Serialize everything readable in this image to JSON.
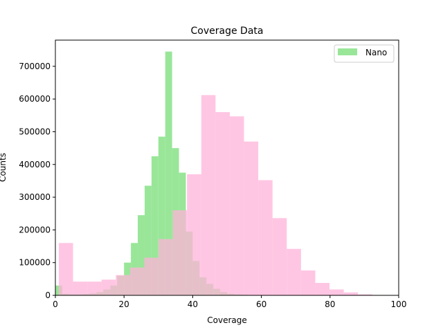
{
  "chart_data": {
    "type": "bar",
    "title": "Coverage Data",
    "xlabel": "Coverage",
    "ylabel": "Counts",
    "xlim": [
      0,
      100
    ],
    "ylim": [
      0,
      780000
    ],
    "xticks": [
      0,
      20,
      40,
      60,
      80,
      100
    ],
    "xtick_labels": [
      "0",
      "20",
      "40",
      "60",
      "80",
      "100"
    ],
    "yticks": [
      0,
      100000,
      200000,
      300000,
      400000,
      500000,
      600000,
      700000
    ],
    "ytick_labels": [
      "0",
      "100000",
      "200000",
      "300000",
      "400000",
      "500000",
      "600000",
      "700000"
    ],
    "grid": false,
    "legend_position": "top-right",
    "series": [
      {
        "name": "Nano",
        "color": "#99e699",
        "bin_edges": [
          0,
          2,
          4,
          6,
          8,
          10,
          12,
          14,
          16,
          18,
          20,
          22,
          24,
          26,
          28,
          30,
          32,
          34,
          36,
          38,
          40,
          42,
          44,
          46,
          48,
          50,
          52,
          54,
          56,
          58,
          60
        ],
        "values": [
          30000,
          5000,
          3000,
          3000,
          4000,
          6000,
          10000,
          18000,
          30000,
          60000,
          100000,
          160000,
          245000,
          335000,
          425000,
          485000,
          745000,
          450000,
          375000,
          195000,
          105000,
          55000,
          35000,
          20000,
          10000,
          5000,
          3000,
          2000,
          1000,
          500
        ]
      },
      {
        "color": "#ffb3d9",
        "bin_edges": [
          1,
          5.15,
          9.3,
          13.45,
          17.6,
          21.75,
          25.9,
          30.05,
          34.2,
          38.35,
          42.5,
          46.65,
          50.8,
          54.95,
          59.1,
          63.25,
          67.4,
          71.55,
          75.7,
          79.85,
          84,
          88.15,
          92.3,
          96.45
        ],
        "values": [
          160000,
          42000,
          42000,
          48000,
          62000,
          85000,
          115000,
          172000,
          260000,
          370000,
          612000,
          560000,
          547000,
          470000,
          352000,
          236000,
          142000,
          76000,
          38000,
          18000,
          9000,
          3000,
          1000
        ]
      }
    ]
  }
}
